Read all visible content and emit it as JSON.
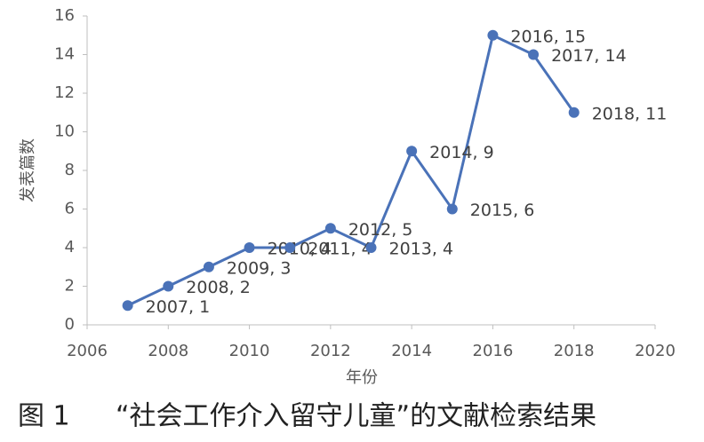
{
  "chart_data": {
    "type": "line",
    "x": [
      2007,
      2008,
      2009,
      2010,
      2011,
      2012,
      2013,
      2014,
      2015,
      2016,
      2017,
      2018
    ],
    "series": [
      {
        "color": "#4a72b8",
        "values": [
          1,
          2,
          3,
          4,
          4,
          5,
          4,
          9,
          6,
          15,
          14,
          11
        ],
        "value_labels": [
          "2007, 1",
          "2008, 2",
          "2009, 3",
          "2010, 4",
          "2011, 4",
          "2012, 5",
          "2013, 4",
          "2014, 9",
          "2015, 6",
          "2016, 15",
          "2017, 14",
          "2018, 11"
        ]
      }
    ],
    "xlim": [
      2006,
      2020
    ],
    "xticks": [
      2006,
      2008,
      2010,
      2012,
      2014,
      2016,
      2018,
      2020
    ],
    "ylim": [
      0,
      16
    ],
    "yticks": [
      0,
      2,
      4,
      6,
      8,
      10,
      12,
      14,
      16
    ],
    "xlabel": "年份",
    "ylabel": "发表篇数",
    "figure_label": "图 1",
    "caption": "“社会工作介入留守儿童”的文献检索结果"
  }
}
